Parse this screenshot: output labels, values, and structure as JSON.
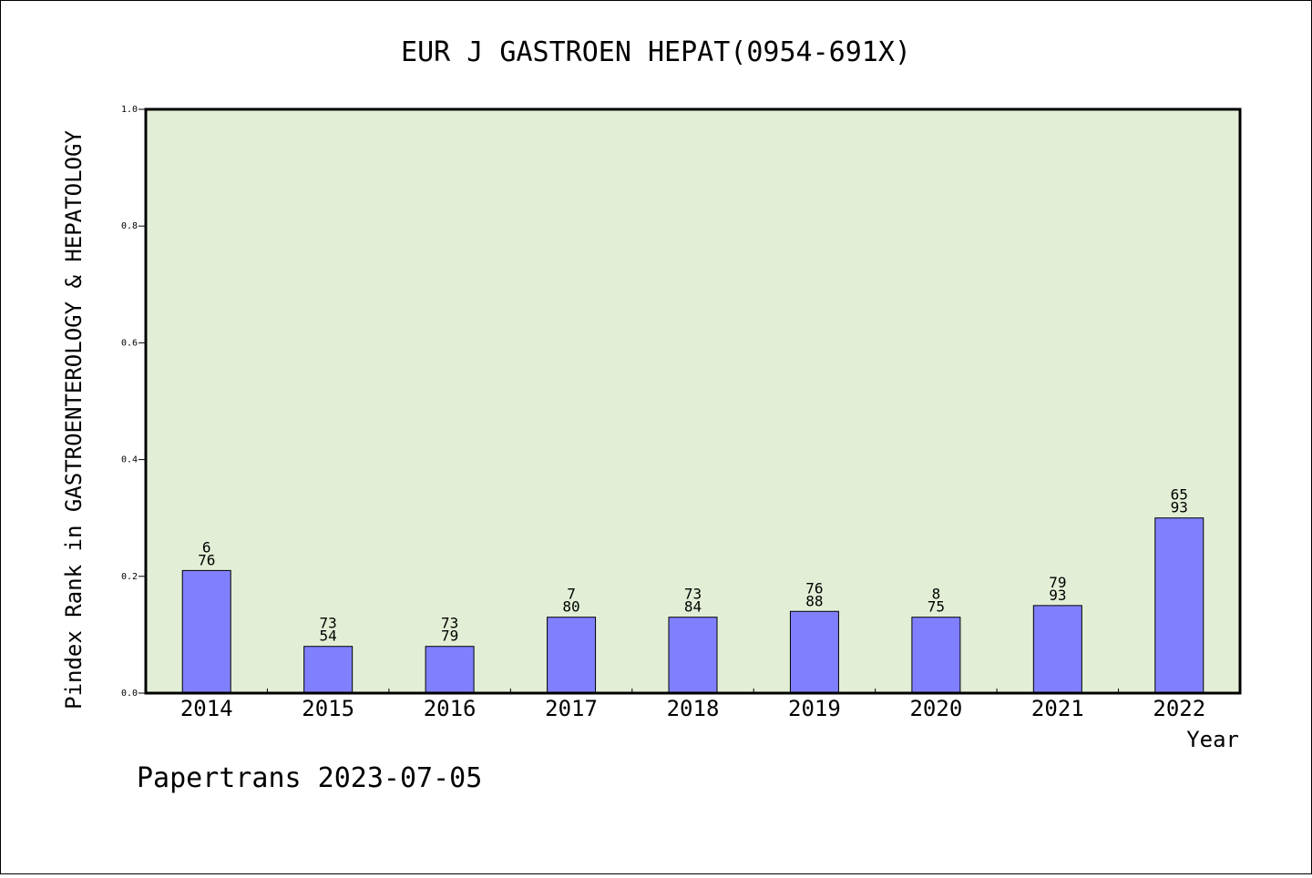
{
  "chart_data": {
    "type": "bar",
    "title": "EUR J GASTROEN HEPAT(0954-691X)",
    "xlabel": "Year",
    "ylabel": "Pindex Rank in GASTROENTEROLOGY & HEPATOLOGY",
    "ylim": [
      0,
      1.0
    ],
    "yticks": [
      "0.0",
      "0.2",
      "0.4",
      "0.6",
      "0.8",
      "1.0"
    ],
    "categories": [
      "2014",
      "2015",
      "2016",
      "2017",
      "2018",
      "2019",
      "2020",
      "2021",
      "2022"
    ],
    "values": [
      0.21,
      0.08,
      0.08,
      0.13,
      0.13,
      0.14,
      0.13,
      0.15,
      0.3
    ],
    "labels_top": [
      "6",
      "73",
      "73",
      "7",
      "73",
      "76",
      "8",
      "79",
      "65"
    ],
    "labels_bottom": [
      "76",
      "54",
      "79",
      "80",
      "84",
      "88",
      "75",
      "93",
      "93"
    ],
    "grid": false,
    "colors": {
      "plot_bg": "#e2efd6",
      "bar": "#8080ff"
    }
  },
  "footer": "Papertrans 2023-07-05"
}
